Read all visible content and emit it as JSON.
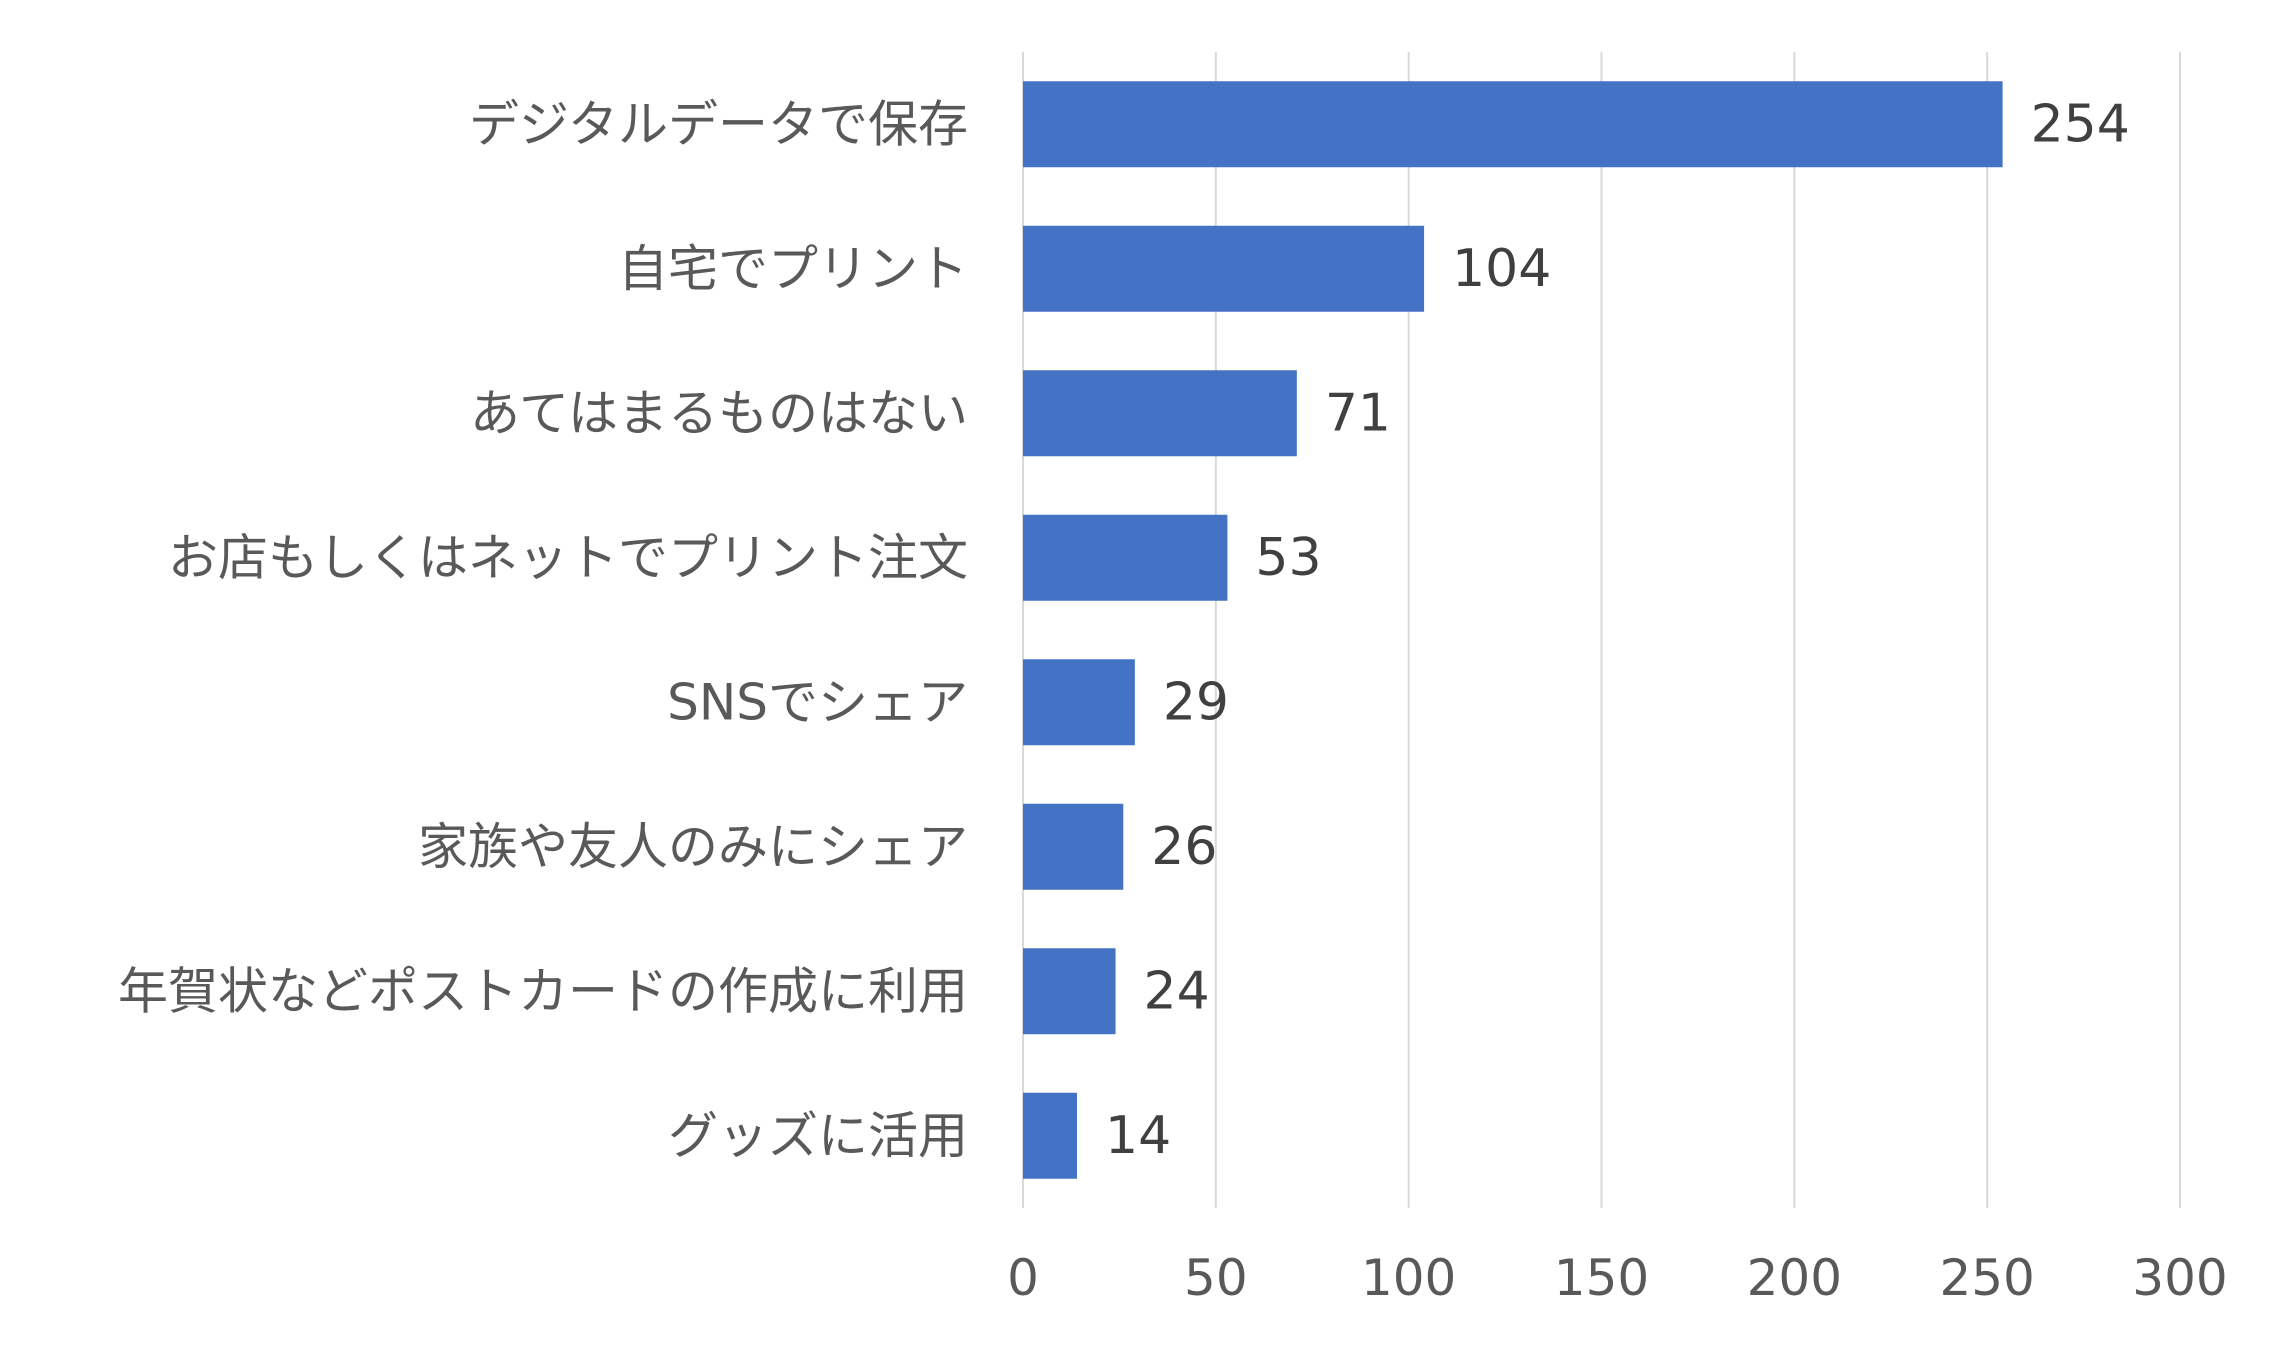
{
  "chart_data": {
    "type": "bar",
    "orientation": "horizontal",
    "categories": [
      "デジタルデータで保存",
      "自宅でプリント",
      "あてはまるものはない",
      "お店もしくはネットでプリント注文",
      "SNSでシェア",
      "家族や友人のみにシェア",
      "年賀状などポストカードの作成に利用",
      "グッズに活用"
    ],
    "values": [
      254,
      104,
      71,
      53,
      29,
      26,
      24,
      14
    ],
    "xlim": [
      0,
      300
    ],
    "x_ticks": [
      "0",
      "50",
      "100",
      "150",
      "200",
      "250",
      "300"
    ],
    "title": "",
    "xlabel": "",
    "ylabel": "",
    "grid": "vertical",
    "legend": "none",
    "data_labels": true,
    "colors": {
      "bar": "#4472C4",
      "grid": "#d9d9d9",
      "category_text": "#595959",
      "tick_text": "#595959",
      "value_text": "#404040"
    }
  }
}
